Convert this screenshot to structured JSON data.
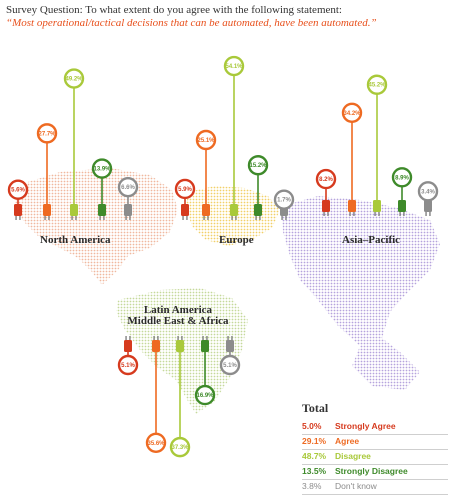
{
  "survey": {
    "label": "Survey Question: To what extent do you agree with the following statement:",
    "statement": "“Most operational/tactical decisions that can be automated, have been automated.”"
  },
  "colors": {
    "strongly_agree": "#d63a1e",
    "agree": "#ee6a22",
    "disagree": "#a9c93a",
    "strongly_disagree": "#3e8a2a",
    "dont_know": "#8c8c8c",
    "map_north_america": "#f0b89e",
    "map_europe": "#f2d068",
    "map_asia_pacific": "#b5a3dd",
    "map_latam_mea": "#c5d99a"
  },
  "chart_data": {
    "type": "bar",
    "categories": [
      "North America",
      "Europe",
      "Asia–Pacific",
      "Latin America\nMiddle East & Africa"
    ],
    "series": [
      {
        "name": "Strongly Agree",
        "values": [
          5.6,
          5.9,
          8.2,
          5.1
        ]
      },
      {
        "name": "Agree",
        "values": [
          27.7,
          25.1,
          34.2,
          35.6
        ]
      },
      {
        "name": "Disagree",
        "values": [
          49.2,
          54.1,
          45.2,
          37.3
        ]
      },
      {
        "name": "Strongly Disagree",
        "values": [
          13.9,
          15.2,
          8.9,
          16.9
        ]
      },
      {
        "name": "Don't know",
        "values": [
          6.6,
          1.7,
          3.4,
          5.1
        ]
      }
    ],
    "regions": [
      {
        "name": "North America",
        "labels": [
          "5.6%",
          "27.7%",
          "49.2%",
          "13.9%",
          "6.6%"
        ]
      },
      {
        "name": "Europe",
        "labels": [
          "5.9%",
          "25.1%",
          "54.1%",
          "15.2%",
          "1.7%"
        ]
      },
      {
        "name": "Asia–Pacific",
        "labels": [
          "8.2%",
          "34.2%",
          "45.2%",
          "8.9%",
          "3.4%"
        ]
      },
      {
        "name": "Latin America\nMiddle East & Africa",
        "labels": [
          "5.1%",
          "35.6%",
          "37.3%",
          "16.9%",
          "5.1%"
        ]
      }
    ],
    "total": {
      "title": "Total",
      "rows": [
        {
          "pct": "5.0%",
          "label": "Strongly Agree",
          "value": 5.0
        },
        {
          "pct": "29.1%",
          "label": "Agree",
          "value": 29.1
        },
        {
          "pct": "48.7%",
          "label": "Disagree",
          "value": 48.7
        },
        {
          "pct": "13.5%",
          "label": "Strongly Disagree",
          "value": 13.5
        },
        {
          "pct": "3.8%",
          "label": "Don't know",
          "value": 3.8
        }
      ]
    },
    "grid": false,
    "legend_position": "bottom-right"
  }
}
